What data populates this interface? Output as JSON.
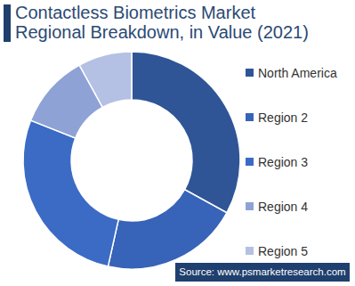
{
  "chart_data": {
    "type": "pie",
    "title": "Contactless Biometrics Market Regional Breakdown, in Value (2021)",
    "categories": [
      "North America",
      "Region 2",
      "Region 3",
      "Region 4",
      "Region 5"
    ],
    "values": [
      33,
      20.5,
      27.5,
      11,
      8
    ],
    "colors": [
      "#2f5597",
      "#3763b8",
      "#3b6bc4",
      "#8ea2d6",
      "#b4c0e4"
    ],
    "legend": "right",
    "source": "Source: www.psmarketresearch.com"
  }
}
